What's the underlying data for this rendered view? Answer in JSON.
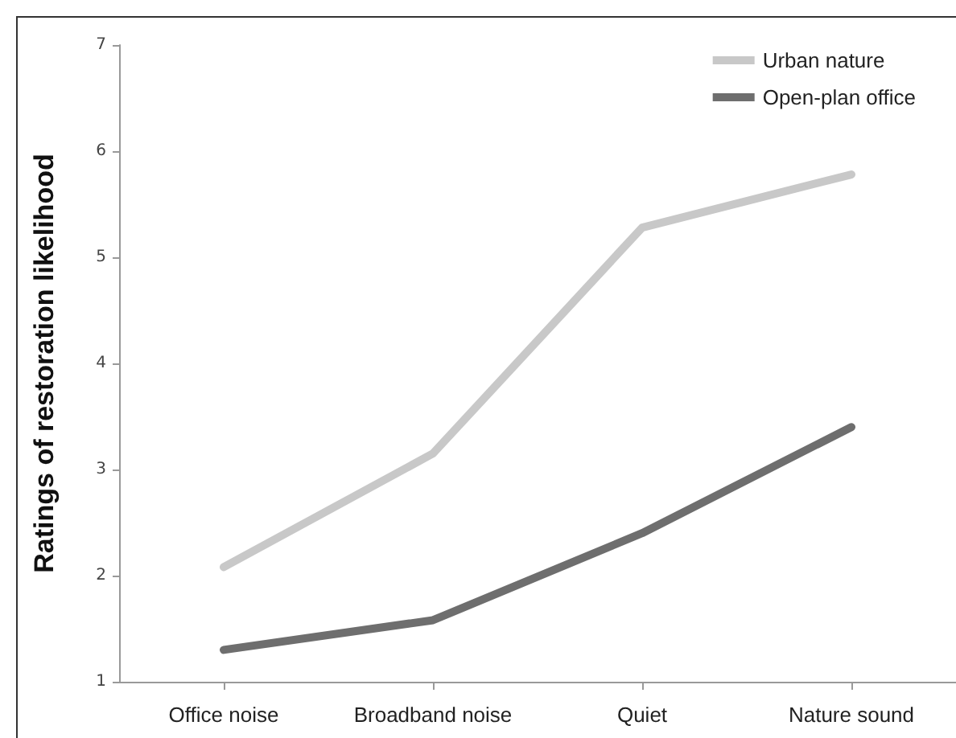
{
  "chart_data": {
    "type": "line",
    "ylabel": "Ratings of restoration likelihood",
    "categories": [
      "Office noise",
      "Broadband noise",
      "Quiet",
      "Nature sound"
    ],
    "series": [
      {
        "name": "Urban nature",
        "color": "#c8c8c8",
        "values": [
          2.08,
          3.15,
          5.28,
          5.78
        ]
      },
      {
        "name": "Open-plan office",
        "color": "#6e6e6e",
        "values": [
          1.3,
          1.58,
          2.4,
          3.4
        ]
      }
    ],
    "ylim": [
      1,
      7
    ],
    "yticks": [
      1,
      2,
      3,
      4,
      5,
      6,
      7
    ],
    "grid": false,
    "legend": "top right",
    "marker": "none",
    "line_style": "solid"
  }
}
